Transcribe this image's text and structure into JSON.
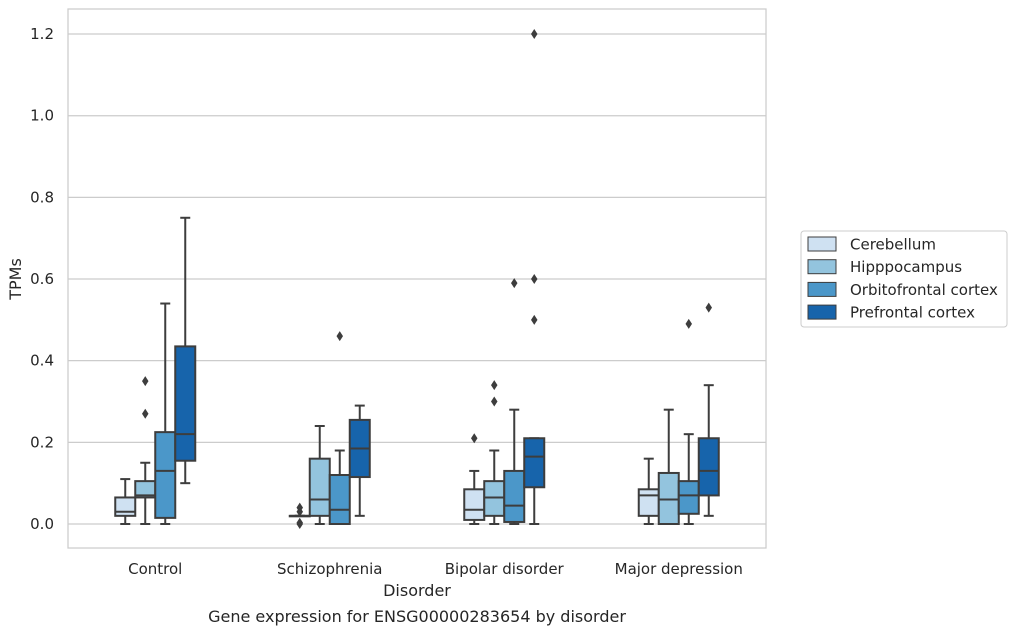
{
  "chart_data": {
    "type": "box",
    "title": "Gene expression for ENSG00000283654 by disorder",
    "xlabel": "Disorder",
    "ylabel": "TPMs",
    "ylim": [
      -0.058,
      1.26
    ],
    "yticks": [
      "0.0",
      "0.2",
      "0.4",
      "0.6",
      "0.8",
      "1.0",
      "1.2"
    ],
    "grid": true,
    "legend_position": "right",
    "categories": [
      "Control",
      "Schizophrenia",
      "Bipolar disorder",
      "Major depression"
    ],
    "series": [
      {
        "name": "Cerebellum",
        "color": "#cfe1f2",
        "boxes": [
          {
            "whislo": 0.0,
            "q1": 0.02,
            "med": 0.03,
            "q3": 0.065,
            "whishi": 0.11,
            "fliers": []
          },
          {
            "whislo": 0.02,
            "q1": 0.02,
            "med": 0.02,
            "q3": 0.02,
            "whishi": 0.02,
            "fliers": [
              0.0,
              0.003,
              0.03,
              0.04
            ]
          },
          {
            "whislo": 0.0,
            "q1": 0.01,
            "med": 0.035,
            "q3": 0.085,
            "whishi": 0.13,
            "fliers": [
              0.21
            ]
          },
          {
            "whislo": 0.0,
            "q1": 0.02,
            "med": 0.07,
            "q3": 0.085,
            "whishi": 0.16,
            "fliers": []
          }
        ]
      },
      {
        "name": "Hipppocampus",
        "color": "#93c4de",
        "boxes": [
          {
            "whislo": 0.0,
            "q1": 0.065,
            "med": 0.07,
            "q3": 0.105,
            "whishi": 0.15,
            "fliers": [
              0.27,
              0.35
            ]
          },
          {
            "whislo": 0.0,
            "q1": 0.02,
            "med": 0.06,
            "q3": 0.16,
            "whishi": 0.24,
            "fliers": []
          },
          {
            "whislo": 0.0,
            "q1": 0.02,
            "med": 0.065,
            "q3": 0.105,
            "whishi": 0.18,
            "fliers": [
              0.3,
              0.34
            ]
          },
          {
            "whislo": 0.0,
            "q1": 0.0,
            "med": 0.06,
            "q3": 0.125,
            "whishi": 0.28,
            "fliers": []
          }
        ]
      },
      {
        "name": "Orbitofrontal cortex",
        "color": "#4b97c9",
        "boxes": [
          {
            "whislo": 0.0,
            "q1": 0.015,
            "med": 0.13,
            "q3": 0.225,
            "whishi": 0.54,
            "fliers": []
          },
          {
            "whislo": 0.0,
            "q1": 0.0,
            "med": 0.035,
            "q3": 0.12,
            "whishi": 0.18,
            "fliers": [
              0.46
            ]
          },
          {
            "whislo": 0.0,
            "q1": 0.005,
            "med": 0.045,
            "q3": 0.13,
            "whishi": 0.28,
            "fliers": [
              0.59
            ]
          },
          {
            "whislo": 0.0,
            "q1": 0.025,
            "med": 0.07,
            "q3": 0.105,
            "whishi": 0.22,
            "fliers": [
              0.49
            ]
          }
        ]
      },
      {
        "name": "Prefrontal cortex",
        "color": "#1764ab",
        "boxes": [
          {
            "whislo": 0.1,
            "q1": 0.155,
            "med": 0.22,
            "q3": 0.435,
            "whishi": 0.75,
            "fliers": []
          },
          {
            "whislo": 0.02,
            "q1": 0.115,
            "med": 0.185,
            "q3": 0.255,
            "whishi": 0.29,
            "fliers": []
          },
          {
            "whislo": 0.0,
            "q1": 0.09,
            "med": 0.165,
            "q3": 0.21,
            "whishi": 0.21,
            "fliers": [
              0.5,
              0.6,
              1.2
            ]
          },
          {
            "whislo": 0.02,
            "q1": 0.07,
            "med": 0.13,
            "q3": 0.21,
            "whishi": 0.34,
            "fliers": [
              0.53
            ]
          }
        ]
      }
    ]
  }
}
